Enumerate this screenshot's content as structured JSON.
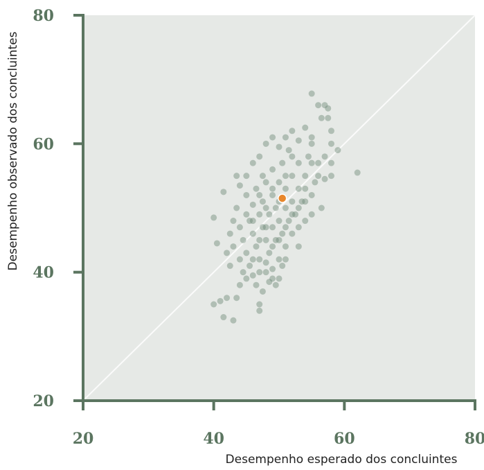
{
  "chart_data": {
    "type": "scatter",
    "x_label": "Desempenho esperado dos concluintes",
    "y_label": "Desempenho observado dos concluintes",
    "xlim": [
      20,
      80
    ],
    "ylim": [
      20,
      80
    ],
    "xticks": [
      20,
      40,
      60,
      80
    ],
    "yticks": [
      20,
      40,
      60,
      80
    ],
    "color": "#6f8a78",
    "x": [
      43.5,
      44,
      44.5,
      45,
      45,
      45.5,
      46,
      46,
      46.5,
      46.5,
      47,
      47,
      47.5,
      47.5,
      48,
      48,
      48,
      48.5,
      48.5,
      49,
      49,
      49,
      49.5,
      49.5,
      50,
      50,
      50,
      50.5,
      50.5,
      51,
      51,
      51,
      51.5,
      51.5,
      52,
      52,
      52,
      52.5,
      53,
      53,
      53,
      53.5,
      54,
      54,
      54.5,
      55,
      55,
      55.5,
      56,
      56.5,
      44,
      44.5,
      45,
      45.5,
      46,
      46.5,
      47,
      47.5,
      48,
      49,
      49.5,
      50,
      50.5,
      51,
      45,
      46,
      47,
      47.5,
      48,
      49,
      50,
      51,
      52,
      53,
      54,
      55,
      43,
      42.5,
      43,
      42,
      42.5,
      44,
      43.5,
      45,
      46,
      47,
      48,
      49,
      50,
      51,
      52,
      53,
      54,
      55,
      56,
      57,
      58,
      46,
      47,
      48,
      49,
      50,
      51,
      52,
      53,
      54,
      55,
      62,
      55,
      56,
      57,
      57.5,
      56.5,
      57.5,
      58,
      59,
      58,
      41.5,
      40,
      40.5,
      40,
      41,
      41.5,
      43,
      42,
      43.5,
      44,
      47,
      47,
      48.5,
      49,
      57,
      58
    ],
    "y": [
      50,
      47,
      45,
      52,
      43,
      48,
      46,
      50.5,
      44,
      53,
      49,
      42,
      47,
      51,
      45,
      54,
      40,
      49,
      43,
      52,
      47,
      56,
      45,
      50,
      48,
      54,
      42,
      46,
      57,
      50,
      44,
      53,
      48,
      59,
      51,
      46,
      55,
      49,
      53,
      57,
      44,
      51,
      55,
      48,
      58,
      52,
      60,
      54,
      57,
      50,
      42,
      40,
      39,
      41,
      39.5,
      38,
      40,
      37,
      41.5,
      40.5,
      38,
      39,
      41,
      42,
      55,
      57,
      58,
      55,
      60,
      61,
      59.5,
      61,
      62,
      60.5,
      62.5,
      61,
      44,
      46,
      48,
      43,
      41,
      53.5,
      55,
      49,
      48,
      45,
      47,
      44,
      45,
      47,
      49,
      47,
      51,
      49,
      55,
      58,
      60,
      42,
      52,
      50,
      53,
      51,
      55,
      58,
      50,
      53,
      57,
      55.5,
      67.8,
      66,
      66,
      65.5,
      64,
      64,
      62,
      59,
      57,
      52.5,
      48.5,
      44.5,
      35,
      35.5,
      33,
      32.5,
      36,
      36,
      38,
      35,
      34,
      38.5,
      39,
      54.5,
      55
    ],
    "highlight": {
      "x": 50.5,
      "y": 51.5,
      "color": "#e8862a"
    }
  }
}
